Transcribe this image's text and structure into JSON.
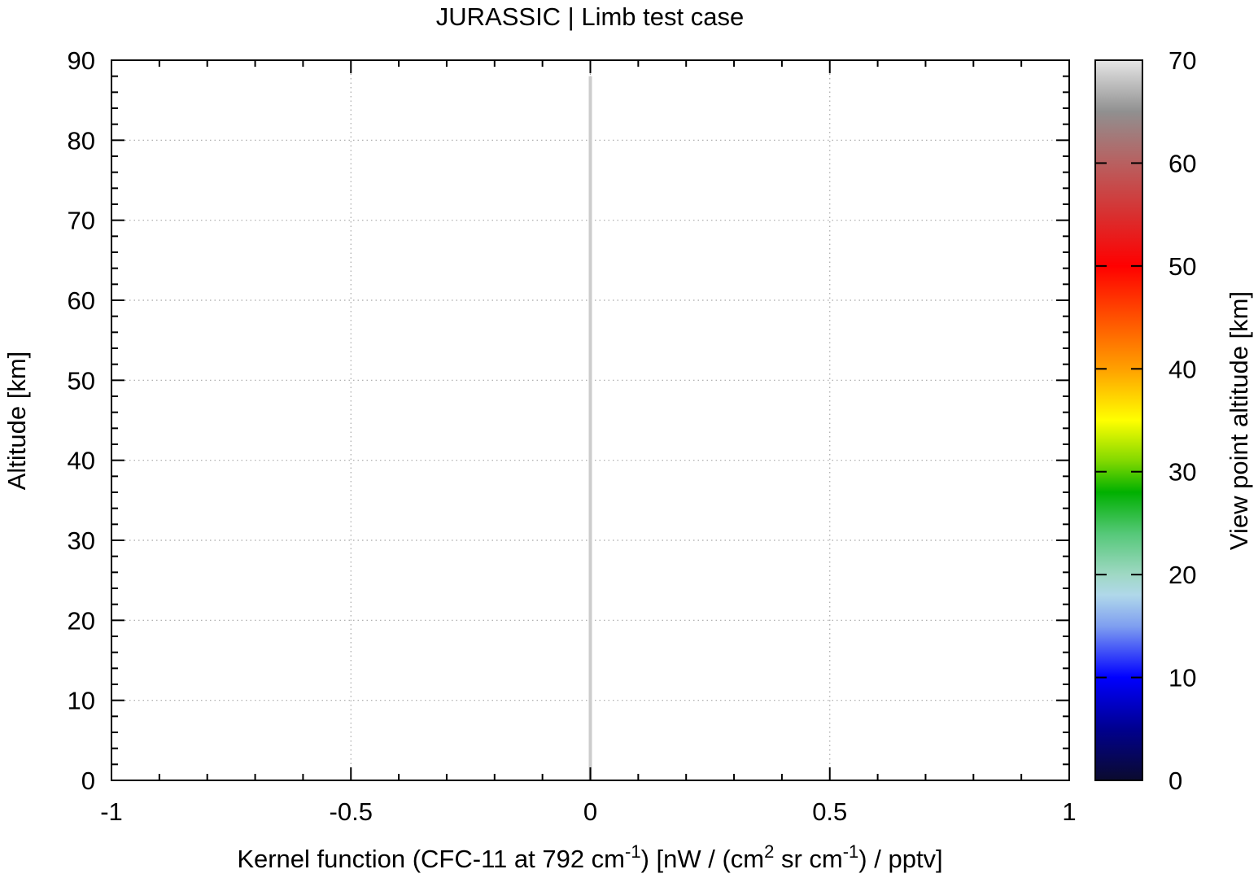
{
  "chart_data": {
    "type": "line",
    "title": "JURASSIC | Limb test case",
    "xlabel": {
      "parts": [
        {
          "text": "Kernel function (CFC-11 at 792 cm",
          "sup": false
        },
        {
          "text": "-1",
          "sup": true
        },
        {
          "text": ") [nW / (cm",
          "sup": false
        },
        {
          "text": "2",
          "sup": true
        },
        {
          "text": " sr cm",
          "sup": false
        },
        {
          "text": "-1",
          "sup": true
        },
        {
          "text": ") / pptv]",
          "sup": false
        }
      ]
    },
    "ylabel": "Altitude [km]",
    "xlim": [
      -1,
      1
    ],
    "ylim": [
      0,
      90
    ],
    "x_ticks": [
      -1,
      -0.5,
      0,
      0.5,
      1
    ],
    "x_tick_labels": [
      "-1",
      "-0.5",
      "0",
      "0.5",
      "1"
    ],
    "x_minor_step": 0.1,
    "y_ticks": [
      0,
      10,
      20,
      30,
      40,
      50,
      60,
      70,
      80,
      90
    ],
    "y_tick_labels": [
      "0",
      "10",
      "20",
      "30",
      "40",
      "50",
      "60",
      "70",
      "80",
      "90"
    ],
    "y_minor_step": 2,
    "grid": true,
    "series": [
      {
        "color": "#cccccc",
        "x": [
          0,
          0,
          0,
          0,
          0,
          0,
          0,
          0,
          0,
          0
        ],
        "y": [
          0,
          10,
          20,
          30,
          40,
          50,
          60,
          70,
          80,
          88
        ]
      }
    ],
    "colorbar": {
      "label": "View point altitude [km]",
      "range": [
        0,
        70
      ],
      "ticks": [
        0,
        10,
        20,
        30,
        40,
        50,
        60,
        70
      ],
      "tick_labels": [
        "0",
        "10",
        "20",
        "30",
        "40",
        "50",
        "60",
        "70"
      ],
      "stops": [
        {
          "v": 0,
          "color": "#0b0b2e"
        },
        {
          "v": 5,
          "color": "#00008f"
        },
        {
          "v": 10,
          "color": "#0000ff"
        },
        {
          "v": 15,
          "color": "#7f9ff0"
        },
        {
          "v": 18,
          "color": "#b0d8ea"
        },
        {
          "v": 20,
          "color": "#9fd8c4"
        },
        {
          "v": 24,
          "color": "#55c878"
        },
        {
          "v": 28,
          "color": "#00b000"
        },
        {
          "v": 31,
          "color": "#80d800"
        },
        {
          "v": 35,
          "color": "#ffff00"
        },
        {
          "v": 40,
          "color": "#ffa000"
        },
        {
          "v": 45,
          "color": "#ff5000"
        },
        {
          "v": 50,
          "color": "#ff0000"
        },
        {
          "v": 55,
          "color": "#d83030"
        },
        {
          "v": 60,
          "color": "#b86060"
        },
        {
          "v": 65,
          "color": "#909090"
        },
        {
          "v": 70,
          "color": "#e6e6e6"
        }
      ]
    }
  }
}
